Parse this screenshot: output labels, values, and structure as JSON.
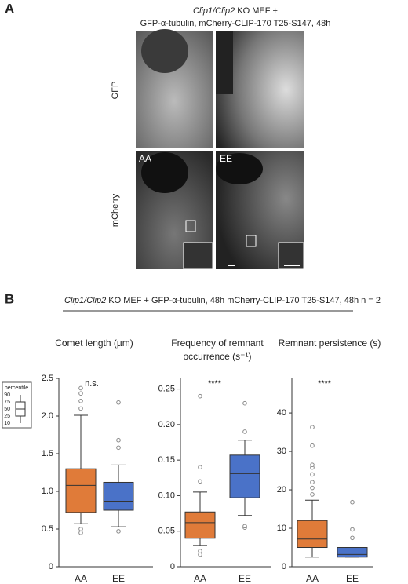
{
  "panel_a": {
    "label": "A",
    "title_italic": "Clip1/Clip2",
    "title_rest": " KO MEF +",
    "title_line2": "GFP-α-tubulin, mCherry-CLIP-170 T25-S147, 48h",
    "row_labels": [
      "GFP",
      "mCherry"
    ],
    "image_labels": [
      "AA",
      "EE"
    ]
  },
  "panel_b": {
    "label": "B",
    "header_italic": "Clip1/Clip2",
    "header_rest": " KO MEF + GFP-α-tubulin, 48h  mCherry-CLIP-170 T25-S147, 48h  n = 2",
    "legend_title": "percentile",
    "legend_percentiles": [
      90,
      75,
      50,
      25,
      10
    ]
  },
  "chart_data": [
    {
      "type": "box",
      "title": [
        "Comet length (µm)"
      ],
      "annotation": "n.s.",
      "categories": [
        "AA",
        "EE"
      ],
      "ylim": [
        0,
        2.5
      ],
      "yticks": [
        0,
        {
          "value": 0.5,
          "label": "0.5"
        },
        {
          "value": 1,
          "label": "1.0"
        },
        {
          "value": 1.5,
          "label": "1.5"
        },
        {
          "value": 2,
          "label": "2.0"
        },
        {
          "value": 2.5,
          "label": "2.5"
        }
      ],
      "series": [
        {
          "name": "AA",
          "color": "#e07b39",
          "whisker_low": 0.57,
          "q1": 0.72,
          "median": 1.08,
          "q3": 1.3,
          "whisker_high": 2.01,
          "outliers": [
            0.45,
            0.5,
            2.1,
            2.2,
            2.3,
            2.37
          ]
        },
        {
          "name": "EE",
          "color": "#4a72c8",
          "whisker_low": 0.53,
          "q1": 0.75,
          "median": 0.87,
          "q3": 1.12,
          "whisker_high": 1.35,
          "outliers": [
            0.47,
            1.58,
            1.68,
            2.18
          ]
        }
      ]
    },
    {
      "type": "box",
      "title": [
        "Frequency of remnant",
        "occurrence (s⁻¹)"
      ],
      "annotation": "****",
      "categories": [
        "AA",
        "EE"
      ],
      "ylim": [
        0,
        0.265
      ],
      "yticks": [
        0,
        0.05,
        {
          "value": 0.1,
          "label": "0.10"
        },
        0.15,
        {
          "value": 0.2,
          "label": "0.20"
        },
        0.25
      ],
      "series": [
        {
          "name": "AA",
          "color": "#e07b39",
          "whisker_low": 0.03,
          "q1": 0.04,
          "median": 0.062,
          "q3": 0.077,
          "whisker_high": 0.105,
          "outliers": [
            0.017,
            0.022,
            0.12,
            0.14,
            0.24
          ]
        },
        {
          "name": "EE",
          "color": "#4a72c8",
          "whisker_low": 0.072,
          "q1": 0.097,
          "median": 0.131,
          "q3": 0.157,
          "whisker_high": 0.178,
          "outliers": [
            0.055,
            0.057,
            0.19,
            0.23
          ]
        }
      ]
    },
    {
      "type": "box",
      "title": [
        "Remnant persistence (s)"
      ],
      "annotation": "****",
      "categories": [
        "AA",
        "EE"
      ],
      "ylim": [
        0,
        49
      ],
      "yticks": [
        0,
        10,
        20,
        30,
        40
      ],
      "series": [
        {
          "name": "AA",
          "color": "#e07b39",
          "whisker_low": 2.5,
          "q1": 5,
          "median": 7.2,
          "q3": 12,
          "whisker_high": 17.3,
          "outliers": [
            18.8,
            20.5,
            22,
            24,
            25.8,
            26.5,
            31.5,
            36.3
          ]
        },
        {
          "name": "EE",
          "color": "#4a72c8",
          "whisker_low": 2.5,
          "q1": 2.5,
          "median": 3.2,
          "q3": 5,
          "whisker_high": 5,
          "outliers": [
            7.5,
            9.7,
            16.8
          ]
        }
      ]
    }
  ]
}
